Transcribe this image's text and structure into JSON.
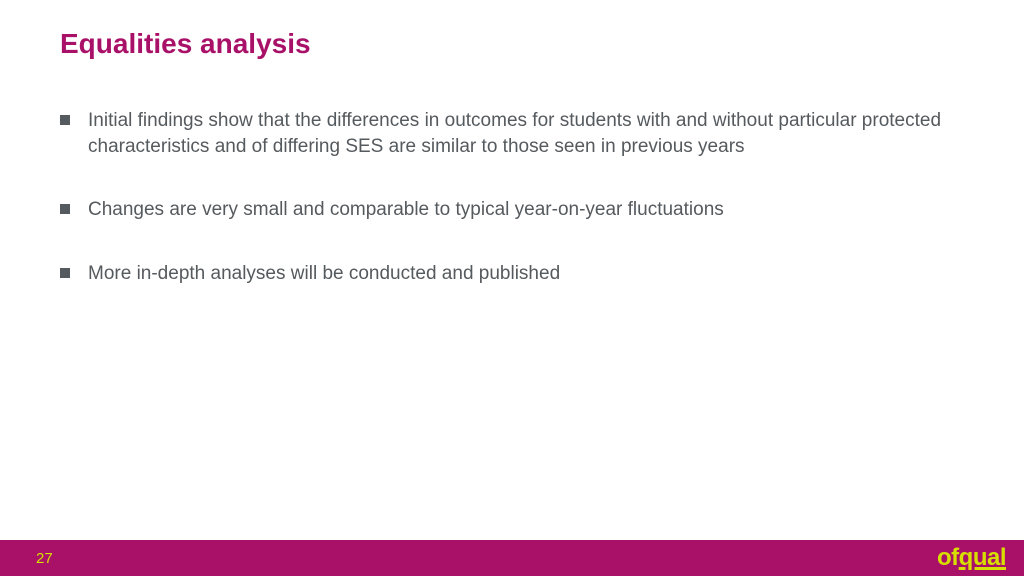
{
  "slide": {
    "title": "Equalities analysis",
    "title_color": "#a91168",
    "title_fontsize": 28,
    "title_fontweight": "bold",
    "bullets": [
      "Initial findings show that the differences in outcomes for students with and without particular protected characteristics and of differing SES are similar to those seen in previous years",
      "Changes are very small and comparable to typical year-on-year fluctuations",
      "More in-depth analyses will be conducted and published"
    ],
    "bullet_text_color": "#555a5e",
    "bullet_fontsize": 19,
    "bullet_marker_color": "#555a5e",
    "bullet_marker_shape": "square",
    "bullet_marker_size": 10,
    "background_color": "#ffffff"
  },
  "footer": {
    "page_number": "27",
    "bar_background_color": "#a91168",
    "accent_color": "#d6df00",
    "logo_of": "of",
    "logo_qual": "qual",
    "logo_color": "#d6df00",
    "page_number_color": "#d6df00",
    "height": 36
  }
}
